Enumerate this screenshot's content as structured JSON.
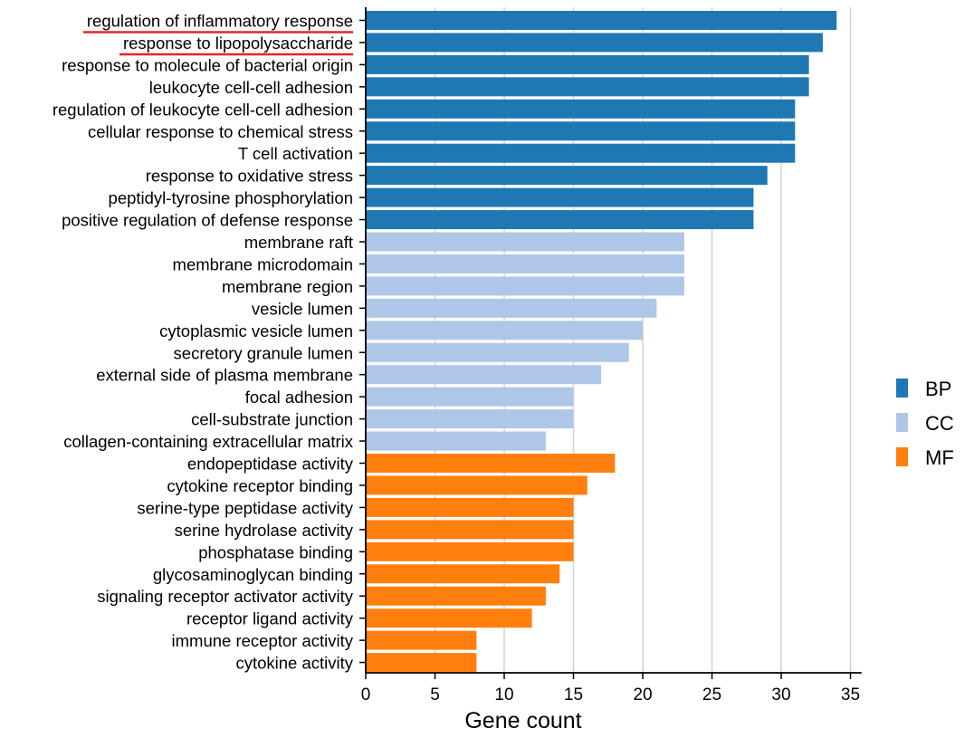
{
  "chart_data": {
    "type": "bar",
    "orientation": "horizontal",
    "xlabel": "Gene count",
    "ylabel": "",
    "xlim": [
      0,
      35
    ],
    "xticks": [
      0,
      5,
      10,
      15,
      20,
      25,
      30,
      35
    ],
    "grid": "vertical",
    "legend": "right",
    "categories": [
      "regulation of inflammatory response",
      "response to lipopolysaccharide",
      "response to molecule of bacterial origin",
      "leukocyte cell-cell adhesion",
      "regulation of leukocyte cell-cell adhesion",
      "cellular response to chemical stress",
      "T cell activation",
      "response to oxidative stress",
      "peptidyl-tyrosine phosphorylation",
      "positive regulation of defense response",
      "membrane raft",
      "membrane microdomain",
      "membrane region",
      "vesicle lumen",
      "cytoplasmic vesicle lumen",
      "secretory granule lumen",
      "external side of plasma membrane",
      "focal adhesion",
      "cell-substrate junction",
      "collagen-containing extracellular matrix",
      "endopeptidase activity",
      "cytokine receptor binding",
      "serine-type peptidase activity",
      "serine hydrolase activity",
      "phosphatase binding",
      "glycosaminoglycan binding",
      "signaling receptor activator activity",
      "receptor ligand activity",
      "immune receptor activity",
      "cytokine activity"
    ],
    "values": [
      34,
      33,
      32,
      32,
      31,
      31,
      31,
      29,
      28,
      28,
      23,
      23,
      23,
      21,
      20,
      19,
      17,
      15,
      15,
      13,
      18,
      16,
      15,
      15,
      15,
      14,
      13,
      12,
      8,
      8
    ],
    "groups": [
      "BP",
      "BP",
      "BP",
      "BP",
      "BP",
      "BP",
      "BP",
      "BP",
      "BP",
      "BP",
      "CC",
      "CC",
      "CC",
      "CC",
      "CC",
      "CC",
      "CC",
      "CC",
      "CC",
      "CC",
      "MF",
      "MF",
      "MF",
      "MF",
      "MF",
      "MF",
      "MF",
      "MF",
      "MF",
      "MF"
    ],
    "legend_entries": [
      {
        "name": "BP",
        "color": "#1f77b4"
      },
      {
        "name": "CC",
        "color": "#aec7e8"
      },
      {
        "name": "MF",
        "color": "#ff7f0e"
      }
    ],
    "underlined_labels": [
      0,
      1
    ],
    "underline_color": "#e8232a",
    "gridline_color": "#d3d3d3",
    "axis_color": "#000000"
  }
}
